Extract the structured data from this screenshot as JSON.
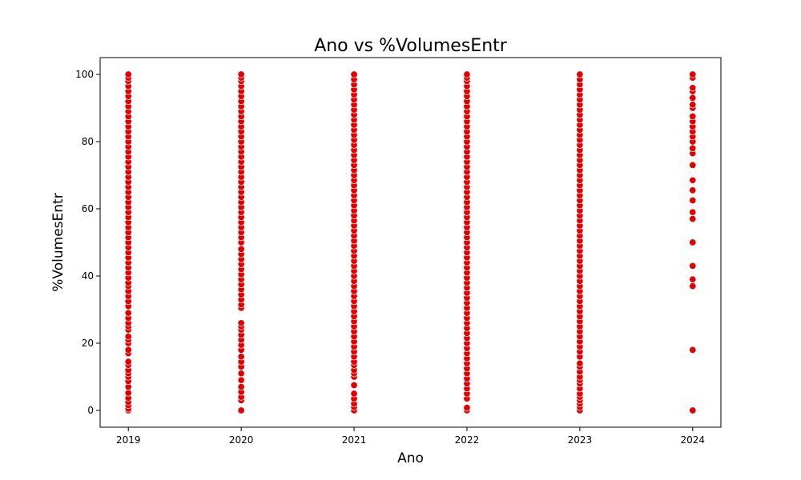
{
  "chart_data": {
    "type": "scatter",
    "title": "Ano vs %VolumesEntr",
    "xlabel": "Ano",
    "ylabel": "%VolumesEntr",
    "x_ticks": [
      2019,
      2020,
      2021,
      2022,
      2023,
      2024
    ],
    "y_ticks": [
      0,
      20,
      40,
      60,
      80,
      100
    ],
    "xlim": [
      2018.75,
      2024.25
    ],
    "ylim": [
      -5,
      105
    ],
    "grid": false,
    "legend": "none",
    "marker_color": "#e00000",
    "series": [
      {
        "x": 2019,
        "values": [
          0,
          0.5,
          1.5,
          2.5,
          3.7,
          5.2,
          7,
          8.7,
          10,
          11,
          12,
          13.5,
          14.5,
          17,
          18,
          20,
          21,
          22,
          24,
          25,
          26,
          27.5,
          29,
          31,
          32.5,
          34,
          35.5,
          37,
          38,
          39.5,
          41,
          42.5,
          44,
          45.5,
          47,
          48.5,
          50,
          51.5,
          53,
          54.5,
          56,
          57.5,
          59,
          60.5,
          62,
          63.5,
          65,
          66.5,
          68,
          69.5,
          71,
          72.5,
          74,
          75.5,
          77,
          78.5,
          80,
          81.5,
          83,
          84.5,
          86,
          87.5,
          89,
          90.5,
          92,
          93.5,
          95,
          96.5,
          98,
          99,
          100
        ]
      },
      {
        "x": 2020,
        "values": [
          0,
          3,
          4,
          5.5,
          7,
          9,
          11,
          13,
          14.5,
          16,
          18,
          19.5,
          21,
          22.5,
          24,
          25,
          26,
          30.5,
          31.5,
          33,
          34.5,
          36,
          37.5,
          39,
          40.5,
          42,
          43.5,
          45,
          46.5,
          48,
          50,
          51.5,
          53,
          54.5,
          56,
          57.5,
          59,
          60.5,
          62,
          63.5,
          65,
          66.5,
          68,
          69.5,
          71,
          72.5,
          74,
          75.5,
          77,
          78.5,
          80,
          81.5,
          83,
          84.5,
          86,
          87.5,
          89,
          90.5,
          92,
          93.5,
          95,
          96.5,
          98,
          99,
          100
        ]
      },
      {
        "x": 2021,
        "values": [
          0,
          1,
          2,
          3.5,
          5,
          7.5,
          10,
          11,
          12,
          13.5,
          14.5,
          16,
          17.5,
          19,
          20.5,
          22,
          23.5,
          25,
          26.5,
          28,
          29.5,
          31,
          32.5,
          34,
          35.5,
          37,
          38.5,
          40,
          41.5,
          43,
          44.5,
          46,
          47.5,
          49,
          50.5,
          52,
          53.5,
          55,
          56.5,
          58,
          59.5,
          61,
          62.5,
          64,
          65.5,
          67,
          68.5,
          70,
          71.5,
          73,
          74.5,
          76,
          77.5,
          79,
          80.5,
          82,
          83.5,
          85,
          86.5,
          88,
          89.5,
          91,
          92.5,
          94,
          95.5,
          97,
          98.5,
          100
        ]
      },
      {
        "x": 2022,
        "values": [
          0,
          0.8,
          3.5,
          5,
          6.5,
          8,
          9.5,
          11,
          12.5,
          14,
          15.5,
          17,
          18.5,
          20,
          21.5,
          23,
          24.5,
          26,
          27.5,
          29,
          30.5,
          32,
          33.5,
          35,
          36.5,
          38,
          39.5,
          41,
          42.5,
          44,
          45.5,
          47,
          48.5,
          50,
          51.5,
          53,
          54.5,
          56,
          57.5,
          59,
          60.5,
          62,
          63.5,
          65,
          66.5,
          68,
          69.5,
          71,
          72.5,
          74,
          75.5,
          77,
          78.5,
          80,
          81.5,
          83,
          84.5,
          86,
          87.5,
          89,
          90.5,
          92,
          93.5,
          95,
          96.5,
          98,
          99,
          100
        ]
      },
      {
        "x": 2023,
        "values": [
          0,
          1,
          2,
          3,
          4,
          5,
          6.5,
          8,
          9,
          10,
          11.5,
          13,
          14,
          16,
          17.5,
          19,
          20.5,
          22,
          23.5,
          25,
          26.5,
          28,
          29.5,
          31,
          32.5,
          34,
          35.5,
          37,
          38.5,
          40,
          41.5,
          43,
          44.5,
          46,
          47.5,
          49,
          50.5,
          52,
          53.5,
          55,
          56.5,
          58,
          59.5,
          61,
          62.5,
          64,
          65.5,
          67,
          68.5,
          70,
          71.5,
          73,
          74.5,
          76,
          77.5,
          79,
          80.5,
          82,
          83.5,
          85,
          86.5,
          88,
          89.5,
          91,
          92.5,
          94,
          95.5,
          97,
          98.5,
          100
        ]
      },
      {
        "x": 2024,
        "values": [
          0,
          18,
          37,
          39,
          43,
          50,
          57,
          59,
          62.5,
          65.5,
          68.5,
          73,
          76.5,
          78,
          80,
          81.5,
          83,
          84.5,
          86,
          87.5,
          90,
          91,
          93,
          95,
          96,
          99,
          100
        ]
      }
    ]
  }
}
